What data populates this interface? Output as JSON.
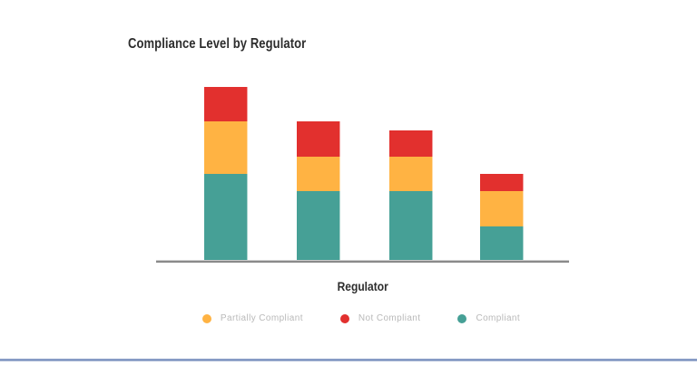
{
  "page": {
    "background_color": "#ffffff",
    "bottom_bar_color": "#7d93c0"
  },
  "chart": {
    "title": "Compliance Level by Regulator",
    "title_color": "#2d2d2d",
    "x_axis_label": "Regulator",
    "axis_color": "#8a8a8a",
    "legend_text_color": "#b9b9b9",
    "legend": [
      {
        "label": "Partially Compliant",
        "color": "#FFB343"
      },
      {
        "label": "Not Compliant",
        "color": "#E2302E"
      },
      {
        "label": "Compliant",
        "color": "#46A096"
      }
    ]
  },
  "chart_data": {
    "type": "bar",
    "stacked": true,
    "title": "Compliance Level by Regulator",
    "xlabel": "Regulator",
    "ylabel": "",
    "categories": [
      "",
      "",
      "",
      ""
    ],
    "series": [
      {
        "name": "Compliant",
        "color": "#46A096",
        "values": [
          10,
          8,
          8,
          4
        ]
      },
      {
        "name": "Partially Compliant",
        "color": "#FFB343",
        "values": [
          6,
          4,
          4,
          4
        ]
      },
      {
        "name": "Not Compliant",
        "color": "#E2302E",
        "values": [
          4,
          4,
          3,
          2
        ]
      }
    ],
    "stack_order_bottom_to_top": [
      "Compliant",
      "Partially Compliant",
      "Not Compliant"
    ],
    "legend_position": "bottom",
    "legend_order": [
      "Partially Compliant",
      "Not Compliant",
      "Compliant"
    ],
    "grid": false,
    "y_axis_visible": false,
    "x_tick_labels_visible": false
  }
}
